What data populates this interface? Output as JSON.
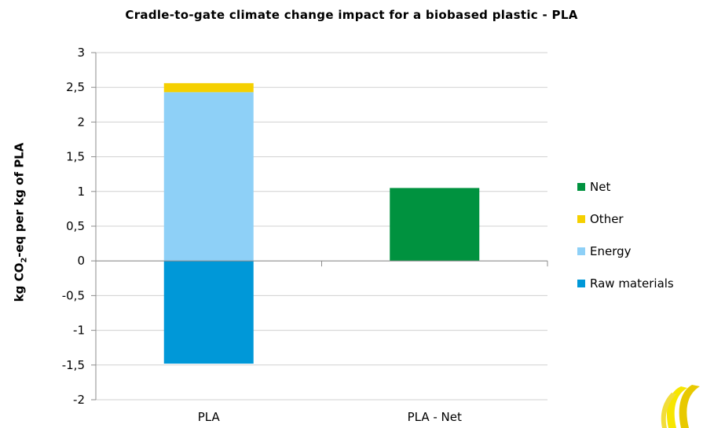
{
  "chart_data": {
    "type": "bar",
    "stacked": true,
    "title": "Cradle-to-gate climate change impact for a biobased plastic - PLA",
    "ylabel": "kg CO2-eq per kg of PLA",
    "ylabel_parts": {
      "pre": "kg CO",
      "sub": "2",
      "post": "-eq per kg of PLA"
    },
    "xlabel": "",
    "categories": [
      "PLA",
      "PLA - Net"
    ],
    "ylim": [
      -2,
      3
    ],
    "yticks": [
      3,
      2.5,
      2,
      1.5,
      1,
      0.5,
      0,
      -0.5,
      -1,
      -1.5,
      -2
    ],
    "ytick_labels": [
      "3",
      "2,5",
      "2",
      "1,5",
      "1",
      "0,5",
      "0",
      "-0,5",
      "-1",
      "-1,5",
      "-2"
    ],
    "grid": true,
    "legend_position": "right",
    "series": [
      {
        "name": "Raw materials",
        "color": "#0098d8",
        "values": [
          -1.48,
          0
        ]
      },
      {
        "name": "Energy",
        "color": "#8ed0f7",
        "values": [
          2.43,
          0
        ]
      },
      {
        "name": "Other",
        "color": "#f5d000",
        "values": [
          0.13,
          0
        ]
      },
      {
        "name": "Net",
        "color": "#00923f",
        "values": [
          0,
          1.05
        ]
      }
    ],
    "legend_order": [
      "Net",
      "Other",
      "Energy",
      "Raw materials"
    ]
  },
  "logo": {
    "name": "logo-icon",
    "colors": [
      "#f7e600",
      "#e8c900"
    ]
  }
}
